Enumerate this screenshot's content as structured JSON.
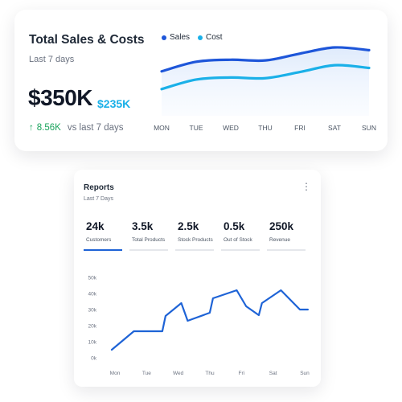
{
  "sales_card": {
    "title": "Total Sales & Costs",
    "subtitle": "Last 7 days",
    "sales_value": "$350K",
    "cost_value": "$235K",
    "change_arrow": "↑",
    "change_value": "8.56K",
    "change_text": "vs last 7 days",
    "legend": [
      {
        "label": "Sales",
        "color": "#1e56d9"
      },
      {
        "label": "Cost",
        "color": "#1ab0e8"
      }
    ]
  },
  "reports_card": {
    "title": "Reports",
    "subtitle": "Last 7 Days",
    "menu_icon": "⋮",
    "stats": [
      {
        "value": "24k",
        "label": "Customers",
        "active": true
      },
      {
        "value": "3.5k",
        "label": "Total Products",
        "active": false
      },
      {
        "value": "2.5k",
        "label": "Stock Products",
        "active": false
      },
      {
        "value": "0.5k",
        "label": "Out of Stock",
        "active": false
      },
      {
        "value": "250k",
        "label": "Revenue",
        "active": false
      }
    ]
  },
  "chart_data": [
    {
      "type": "area",
      "categories": [
        "MON",
        "TUE",
        "WED",
        "THU",
        "FRI",
        "SAT",
        "SUN"
      ],
      "series": [
        {
          "name": "Sales",
          "color": "#1e56d9",
          "values": [
            65,
            79,
            82,
            81,
            91,
            100,
            96
          ]
        },
        {
          "name": "Cost",
          "color": "#1ab0e8",
          "values": [
            39,
            53,
            56,
            55,
            64,
            74,
            70
          ]
        }
      ],
      "ylim": [
        0,
        120
      ],
      "grid": false,
      "legend": "top-left"
    },
    {
      "type": "line",
      "categories": [
        "Mon",
        "Tue",
        "Wed",
        "Thu",
        "Fri",
        "Sat",
        "Sun"
      ],
      "y_ticks": [
        "0k",
        "10k",
        "20k",
        "30k",
        "40k",
        "50k"
      ],
      "ylim": [
        0,
        50
      ],
      "series": [
        {
          "color": "#1e63d6",
          "points": [
            [
              0,
              5
            ],
            [
              0.7,
              16.5
            ],
            [
              1.6,
              16.5
            ],
            [
              1.7,
              26
            ],
            [
              2.2,
              34
            ],
            [
              2.4,
              23
            ],
            [
              3.1,
              28
            ],
            [
              3.2,
              37
            ],
            [
              3.95,
              42
            ],
            [
              4.25,
              32
            ],
            [
              4.65,
              26.5
            ],
            [
              4.75,
              34
            ],
            [
              5.35,
              42
            ],
            [
              5.95,
              30
            ],
            [
              6.2,
              30
            ]
          ]
        }
      ],
      "grid": false
    }
  ]
}
